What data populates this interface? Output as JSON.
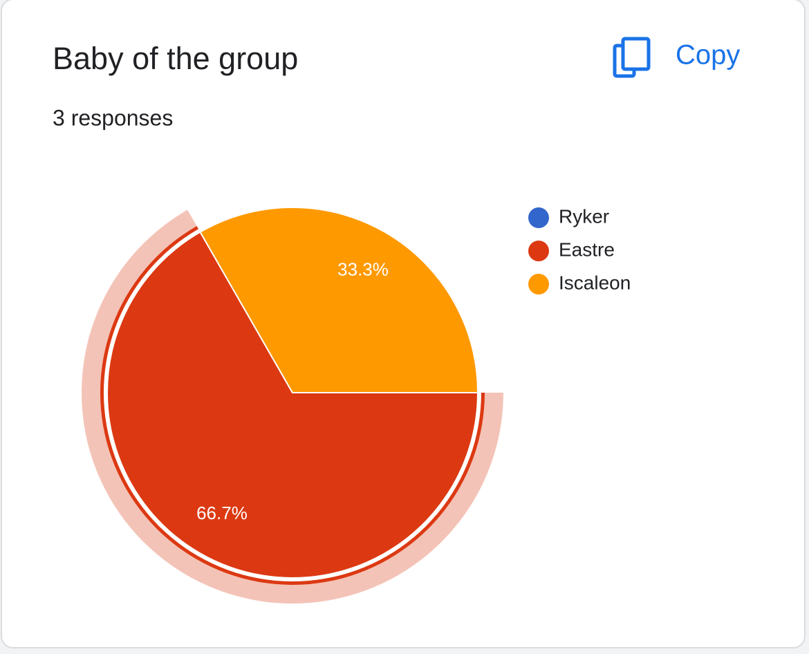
{
  "card": {
    "title": "Baby of the group",
    "subtitle": "3 responses",
    "copy_label": "Copy"
  },
  "chart_data": {
    "type": "pie",
    "categories": [
      "Ryker",
      "Eastre",
      "Iscaleon"
    ],
    "values": [
      0,
      66.7,
      33.3
    ],
    "value_labels": [
      null,
      "66.7%",
      "33.3%"
    ],
    "colors": [
      "#3366cc",
      "#dc3912",
      "#ff9900"
    ],
    "highlighted": 1,
    "legend": "right"
  }
}
